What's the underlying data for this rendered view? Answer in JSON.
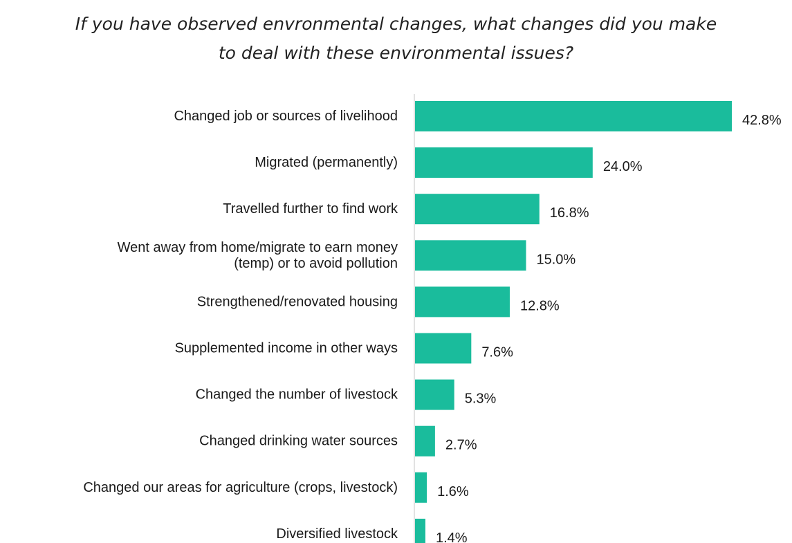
{
  "chart_data": {
    "type": "bar",
    "orientation": "horizontal",
    "title_lines": [
      "If you have observed envronmental changes, what changes did you make",
      "to deal with these environmental issues?"
    ],
    "categories": [
      [
        "Changed job or sources of livelihood"
      ],
      [
        "Migrated (permanently)"
      ],
      [
        "Travelled further to find work"
      ],
      [
        "Went away from home/migrate to earn money",
        "(temp) or to avoid pollution"
      ],
      [
        "Strengthened/renovated housing"
      ],
      [
        "Supplemented income in other ways"
      ],
      [
        "Changed the number of livestock"
      ],
      [
        "Changed drinking water sources"
      ],
      [
        "Changed our areas for agriculture (crops, livestock)"
      ],
      [
        "Diversified livestock"
      ]
    ],
    "values": [
      42.8,
      24.0,
      16.8,
      15.0,
      12.8,
      7.6,
      5.3,
      2.7,
      1.6,
      1.4
    ],
    "value_labels": [
      "42.8%",
      "24.0%",
      "16.8%",
      "15.0%",
      "12.8%",
      "7.6%",
      "5.3%",
      "2.7%",
      "1.6%",
      "1.4%"
    ],
    "unit": "%",
    "xlim": [
      0,
      42.8
    ],
    "grid": false,
    "legend": "none",
    "bar_color": "#1abc9c",
    "axis_color": "#d9d9d9"
  }
}
